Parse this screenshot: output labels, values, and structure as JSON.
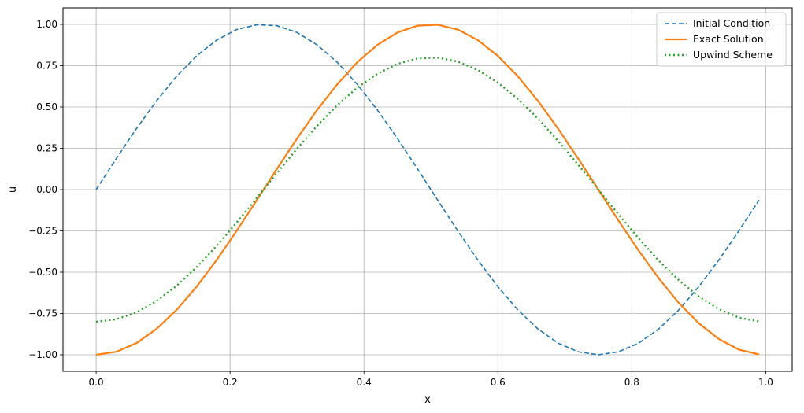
{
  "chart_data": {
    "type": "line",
    "title": "",
    "xlabel": "x",
    "ylabel": "u",
    "xlim": [
      -0.0495,
      1.0395
    ],
    "ylim": [
      -1.1,
      1.1
    ],
    "xticks": [
      0.0,
      0.2,
      0.4,
      0.6,
      0.8,
      1.0
    ],
    "xtick_labels": [
      "0.0",
      "0.2",
      "0.4",
      "0.6",
      "0.8",
      "1.0"
    ],
    "yticks": [
      -1.0,
      -0.75,
      -0.5,
      -0.25,
      0.0,
      0.25,
      0.5,
      0.75,
      1.0
    ],
    "ytick_labels": [
      "−1.00",
      "−0.75",
      "−0.50",
      "−0.25",
      "0.00",
      "0.25",
      "0.50",
      "0.75",
      "1.00"
    ],
    "grid": true,
    "legend_position": "top-right",
    "x": [
      0.0,
      0.03,
      0.06,
      0.09,
      0.12,
      0.15,
      0.18,
      0.21,
      0.24,
      0.27,
      0.3,
      0.33,
      0.36,
      0.39,
      0.42,
      0.45,
      0.48,
      0.51,
      0.54,
      0.57,
      0.6,
      0.63,
      0.66,
      0.69,
      0.72,
      0.75,
      0.78,
      0.81,
      0.84,
      0.87,
      0.9,
      0.93,
      0.96,
      0.99
    ],
    "series": [
      {
        "name": "Initial Condition",
        "color": "#1f77b4",
        "style": "dashed",
        "values": [
          0.0,
          0.187,
          0.368,
          0.536,
          0.685,
          0.809,
          0.905,
          0.969,
          0.998,
          0.992,
          0.951,
          0.876,
          0.771,
          0.637,
          0.482,
          0.309,
          0.125,
          -0.063,
          -0.249,
          -0.426,
          -0.588,
          -0.729,
          -0.844,
          -0.93,
          -0.982,
          -1.0,
          -0.982,
          -0.93,
          -0.844,
          -0.729,
          -0.588,
          -0.426,
          -0.249,
          -0.063
        ]
      },
      {
        "name": "Exact Solution",
        "color": "#ff7f0e",
        "style": "solid",
        "values": [
          -1.0,
          -0.982,
          -0.93,
          -0.844,
          -0.729,
          -0.588,
          -0.426,
          -0.249,
          -0.063,
          0.125,
          0.309,
          0.482,
          0.637,
          0.771,
          0.876,
          0.951,
          0.992,
          0.998,
          0.969,
          0.905,
          0.809,
          0.685,
          0.536,
          0.368,
          0.187,
          0.0,
          -0.187,
          -0.368,
          -0.536,
          -0.685,
          -0.809,
          -0.905,
          -0.969,
          -0.998
        ]
      },
      {
        "name": "Upwind Scheme",
        "color": "#2ca02c",
        "style": "dotted",
        "values": [
          -0.8,
          -0.785,
          -0.744,
          -0.675,
          -0.583,
          -0.47,
          -0.341,
          -0.199,
          -0.05,
          0.1,
          0.247,
          0.386,
          0.51,
          0.617,
          0.701,
          0.761,
          0.794,
          0.799,
          0.775,
          0.724,
          0.647,
          0.548,
          0.429,
          0.294,
          0.15,
          0.0,
          -0.15,
          -0.294,
          -0.429,
          -0.548,
          -0.647,
          -0.724,
          -0.775,
          -0.798
        ]
      }
    ]
  }
}
